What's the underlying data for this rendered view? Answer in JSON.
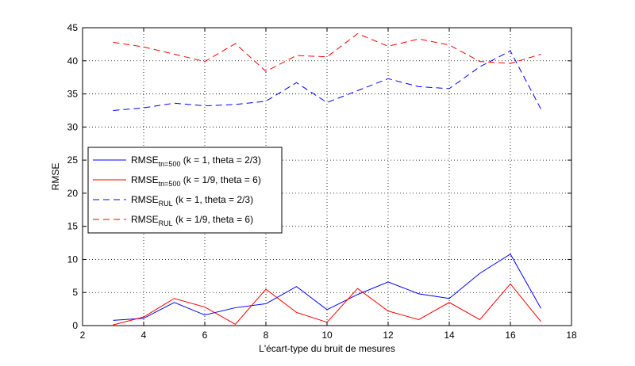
{
  "chart_data": {
    "type": "line",
    "xlabel": "L'écart-type du bruit de mesures",
    "ylabel": "RMSE",
    "xlim": [
      2,
      18
    ],
    "ylim": [
      0,
      45
    ],
    "xticks": [
      2,
      4,
      6,
      8,
      10,
      12,
      14,
      16,
      18
    ],
    "yticks": [
      0,
      5,
      10,
      15,
      20,
      25,
      30,
      35,
      40,
      45
    ],
    "grid": true,
    "legend_position": "center-left",
    "x": [
      3,
      4,
      5,
      6,
      7,
      8,
      9,
      10,
      11,
      12,
      13,
      14,
      15,
      16,
      17
    ],
    "series": [
      {
        "name": "RMSE_tn=500 (k = 1, theta = 2/3)",
        "label_main": "RMSE",
        "label_sub": "tn=500",
        "label_rest": " (k = 1, theta = 2/3)",
        "color": "#0000ff",
        "style": "solid",
        "values": [
          0.8,
          1.1,
          3.5,
          1.6,
          2.7,
          3.3,
          5.9,
          2.4,
          4.7,
          6.6,
          4.8,
          4.1,
          7.9,
          10.8,
          2.6
        ]
      },
      {
        "name": "RMSE_tn=500 (k = 1/9, theta = 6)",
        "label_main": "RMSE",
        "label_sub": "tn=500",
        "label_rest": " (k = 1/9, theta = 6)",
        "color": "#ff0000",
        "style": "solid",
        "values": [
          0.1,
          1.3,
          4.1,
          2.8,
          0.2,
          5.5,
          2.0,
          0.5,
          5.6,
          2.2,
          0.9,
          3.5,
          0.9,
          6.3,
          0.6
        ]
      },
      {
        "name": "RMSE_RUL (k = 1, theta = 2/3)",
        "label_main": "RMSE",
        "label_sub": "RUL",
        "label_rest": " (k = 1, theta = 2/3)",
        "color": "#0000ff",
        "style": "dashed",
        "values": [
          32.5,
          32.9,
          33.6,
          33.2,
          33.4,
          33.9,
          36.7,
          33.7,
          35.5,
          37.3,
          36.1,
          35.8,
          39.1,
          41.5,
          32.7
        ]
      },
      {
        "name": "RMSE_RUL (k = 1/9, theta = 6)",
        "label_main": "RMSE",
        "label_sub": "RUL",
        "label_rest": " (k = 1/9, theta = 6)",
        "color": "#ff0000",
        "style": "dashed",
        "values": [
          42.8,
          42.1,
          41.0,
          39.9,
          42.6,
          38.4,
          40.8,
          40.6,
          44.1,
          42.2,
          43.3,
          42.4,
          39.9,
          39.6,
          41.0
        ]
      }
    ]
  }
}
